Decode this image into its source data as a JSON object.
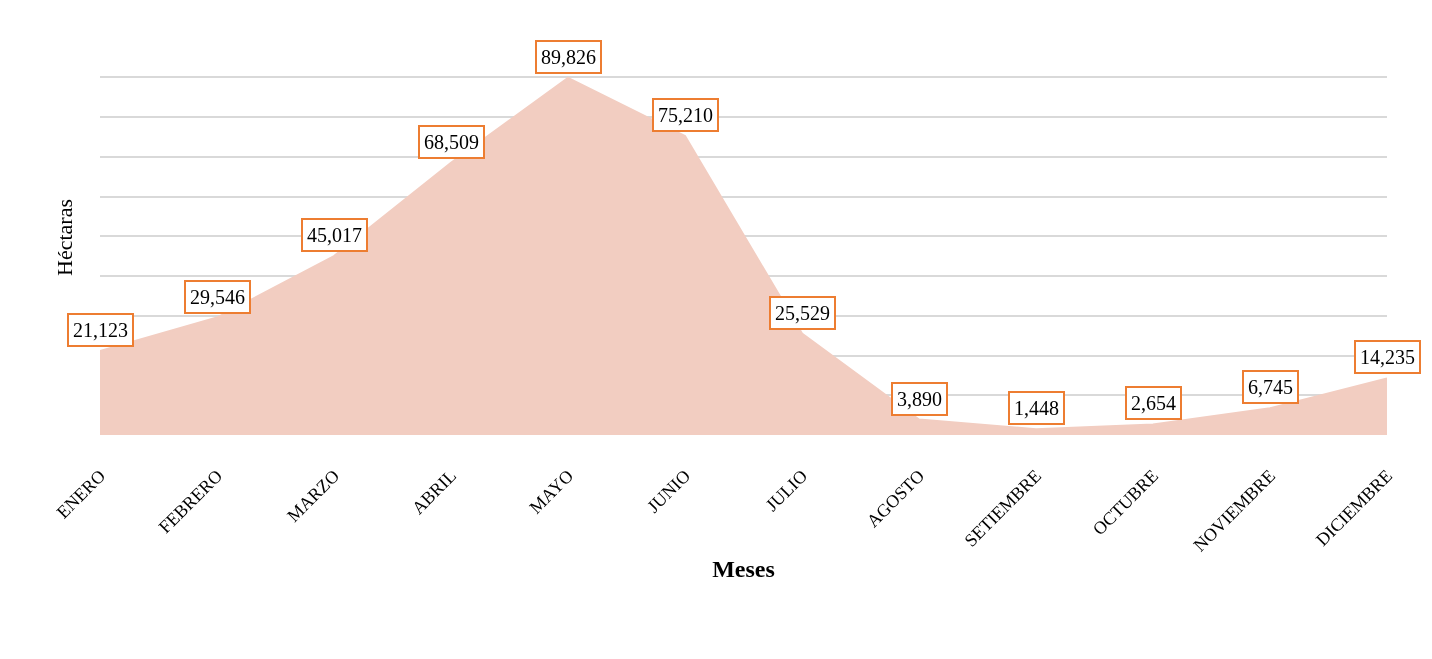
{
  "chart_data": {
    "type": "area",
    "xlabel": "Meses",
    "ylabel": "Héctaras",
    "categories": [
      "ENERO",
      "FEBRERO",
      "MARZO",
      "ABRIL",
      "MAYO",
      "JUNIO",
      "JULIO",
      "AGOSTO",
      "SETIEMBRE",
      "OCTUBRE",
      "NOVIEMBRE",
      "DICIEMBRE"
    ],
    "series": [
      {
        "color": "#f2cdc1",
        "values": [
          21123,
          29546,
          45017,
          68509,
          89826,
          75210,
          25529,
          3890,
          1448,
          2654,
          6745,
          14235
        ],
        "value_labels": [
          "21,123",
          "29,546",
          "45,017",
          "68,509",
          "89,826",
          "75,210",
          "25,529",
          "3,890",
          "1,448",
          "2,654",
          "6,745",
          "14,235"
        ]
      }
    ],
    "grid": "y",
    "tick_labels": "x"
  }
}
